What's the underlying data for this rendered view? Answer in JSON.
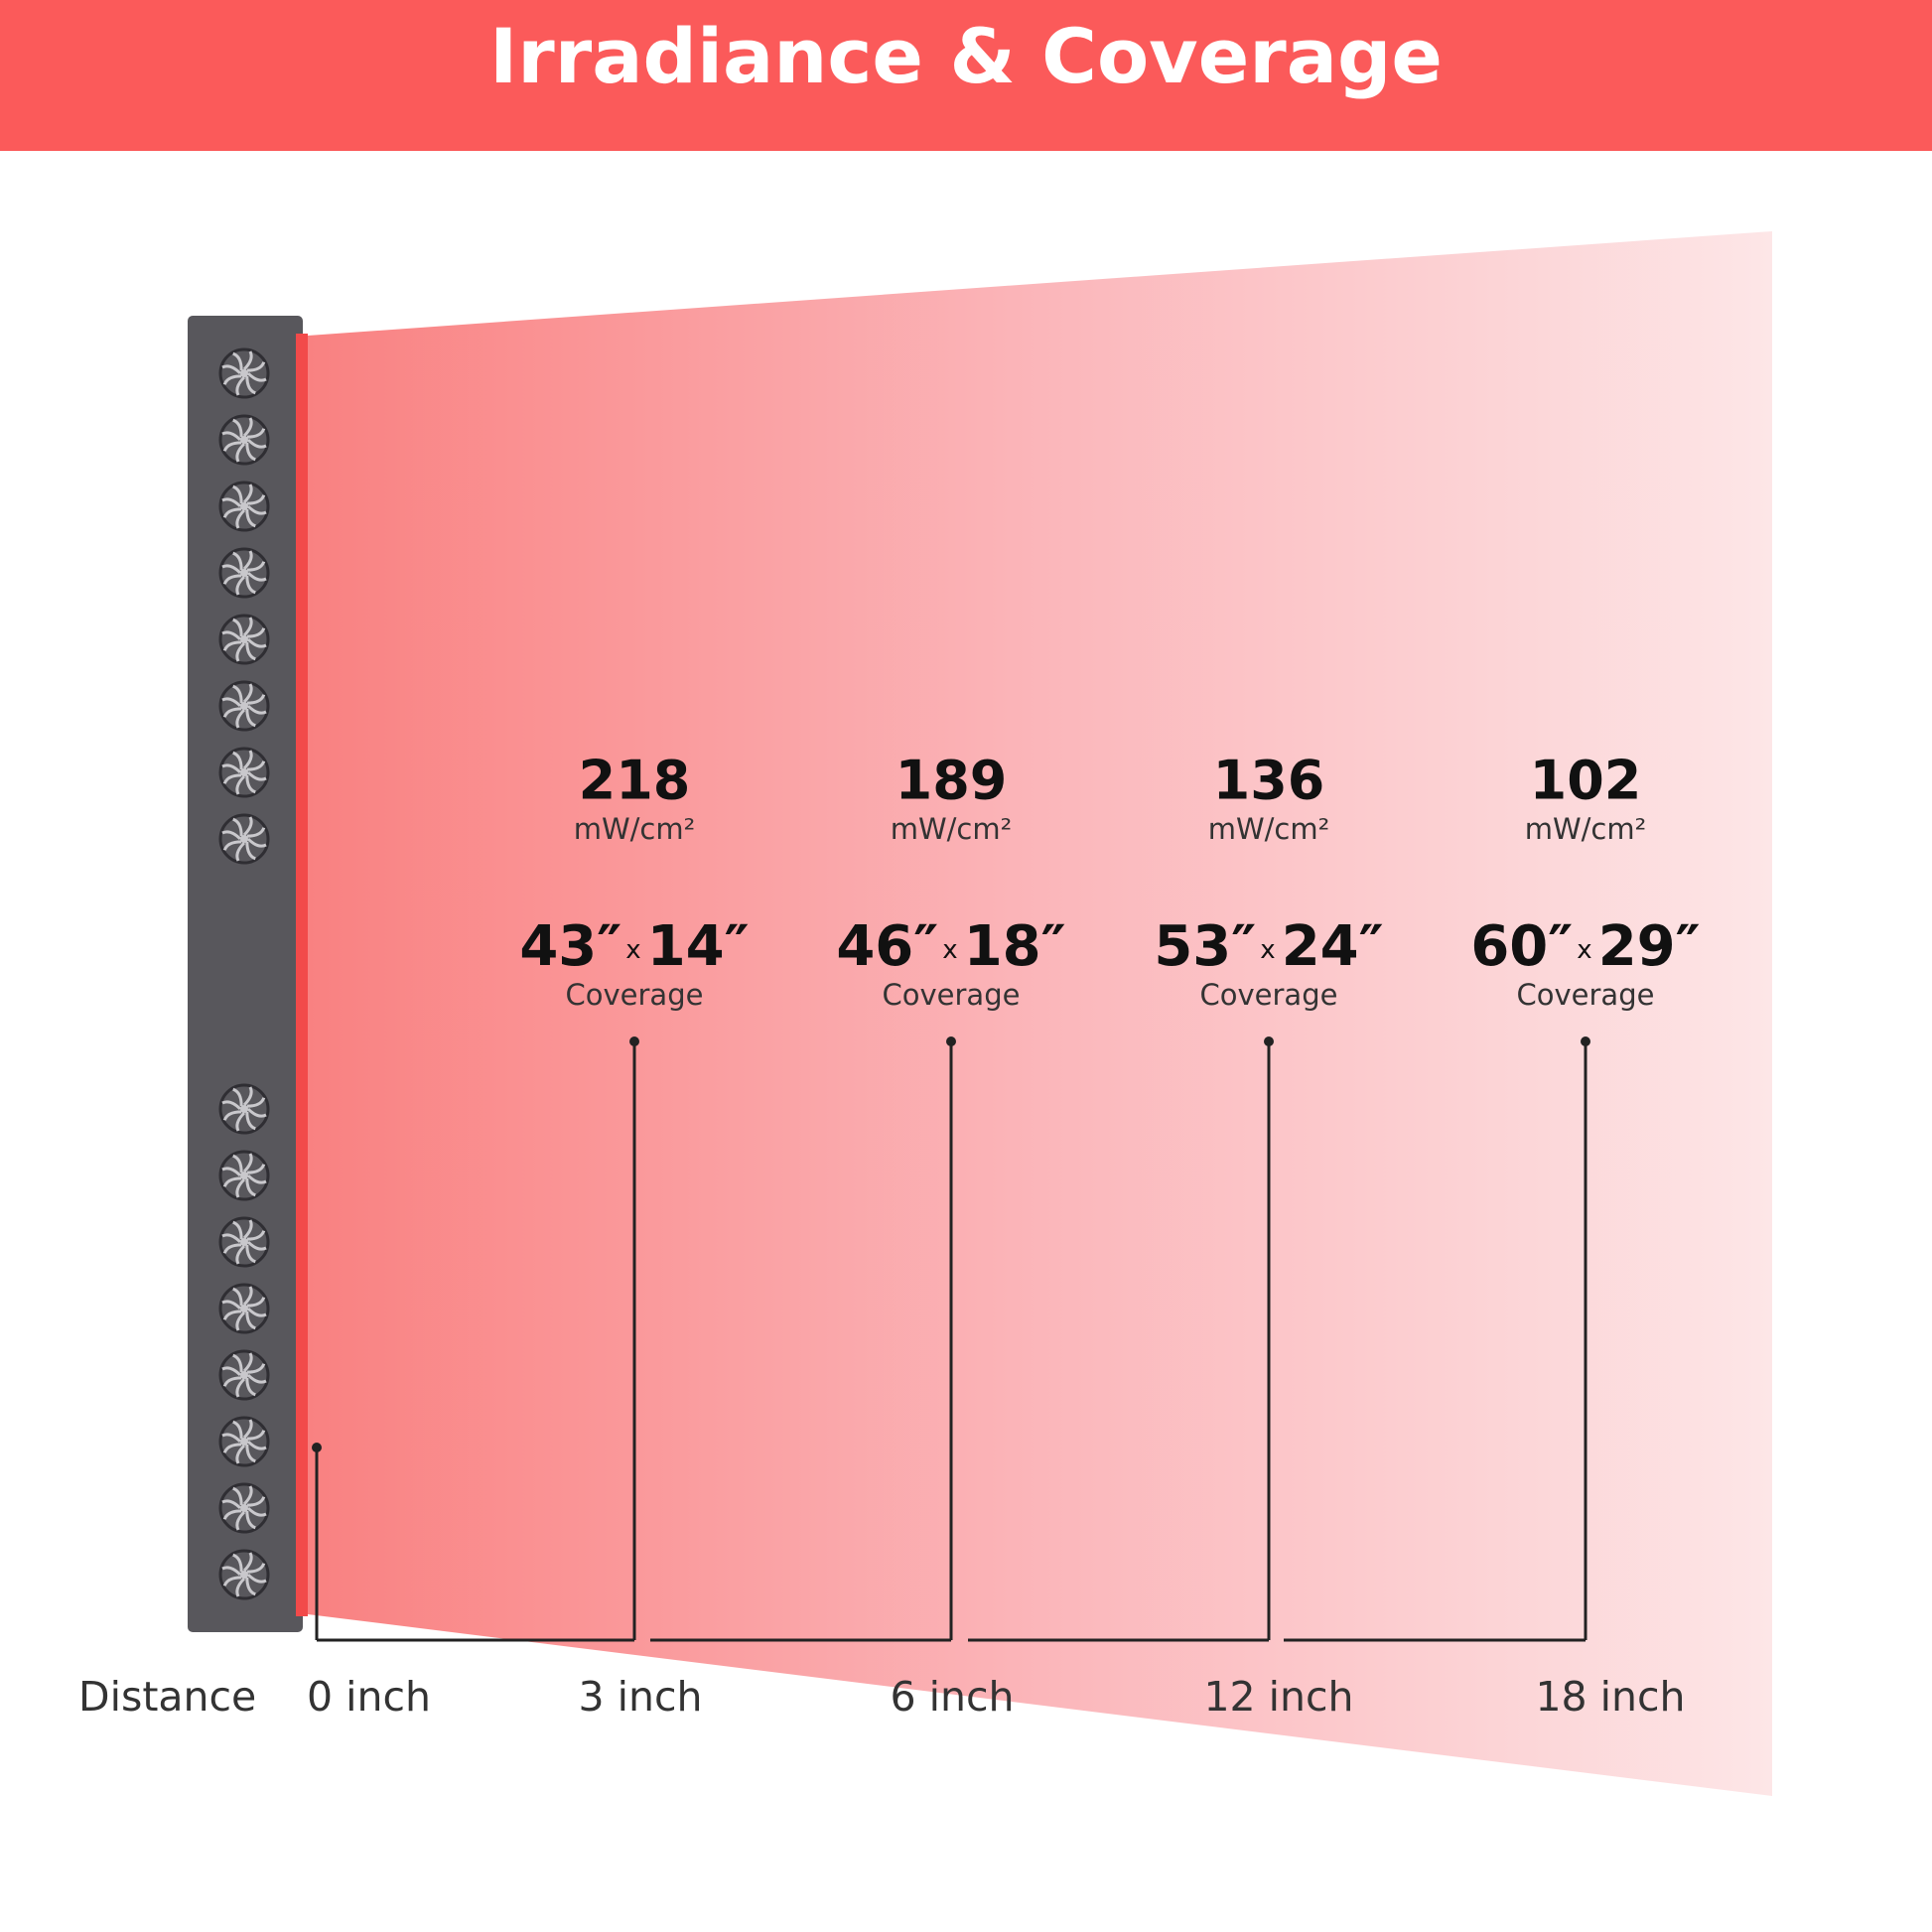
{
  "header": {
    "title": "Irradiance & Coverage"
  },
  "distance_label": "Distance",
  "origin_label": "0 inch",
  "items": [
    {
      "irradiance": "218",
      "unit": "mW/cm²",
      "width": "43″",
      "separator": "x",
      "height": "14″",
      "coverage": "Coverage",
      "distance": "3 inch"
    },
    {
      "irradiance": "189",
      "unit": "mW/cm²",
      "width": "46″",
      "separator": "x",
      "height": "18″",
      "coverage": "Coverage",
      "distance": "6 inch"
    },
    {
      "irradiance": "136",
      "unit": "mW/cm²",
      "width": "53″",
      "separator": "x",
      "height": "24″",
      "coverage": "Coverage",
      "distance": "12 inch"
    },
    {
      "irradiance": "102",
      "unit": "mW/cm²",
      "width": "60″",
      "separator": "x",
      "height": "29″",
      "coverage": "Coverage",
      "distance": "18 inch"
    }
  ]
}
